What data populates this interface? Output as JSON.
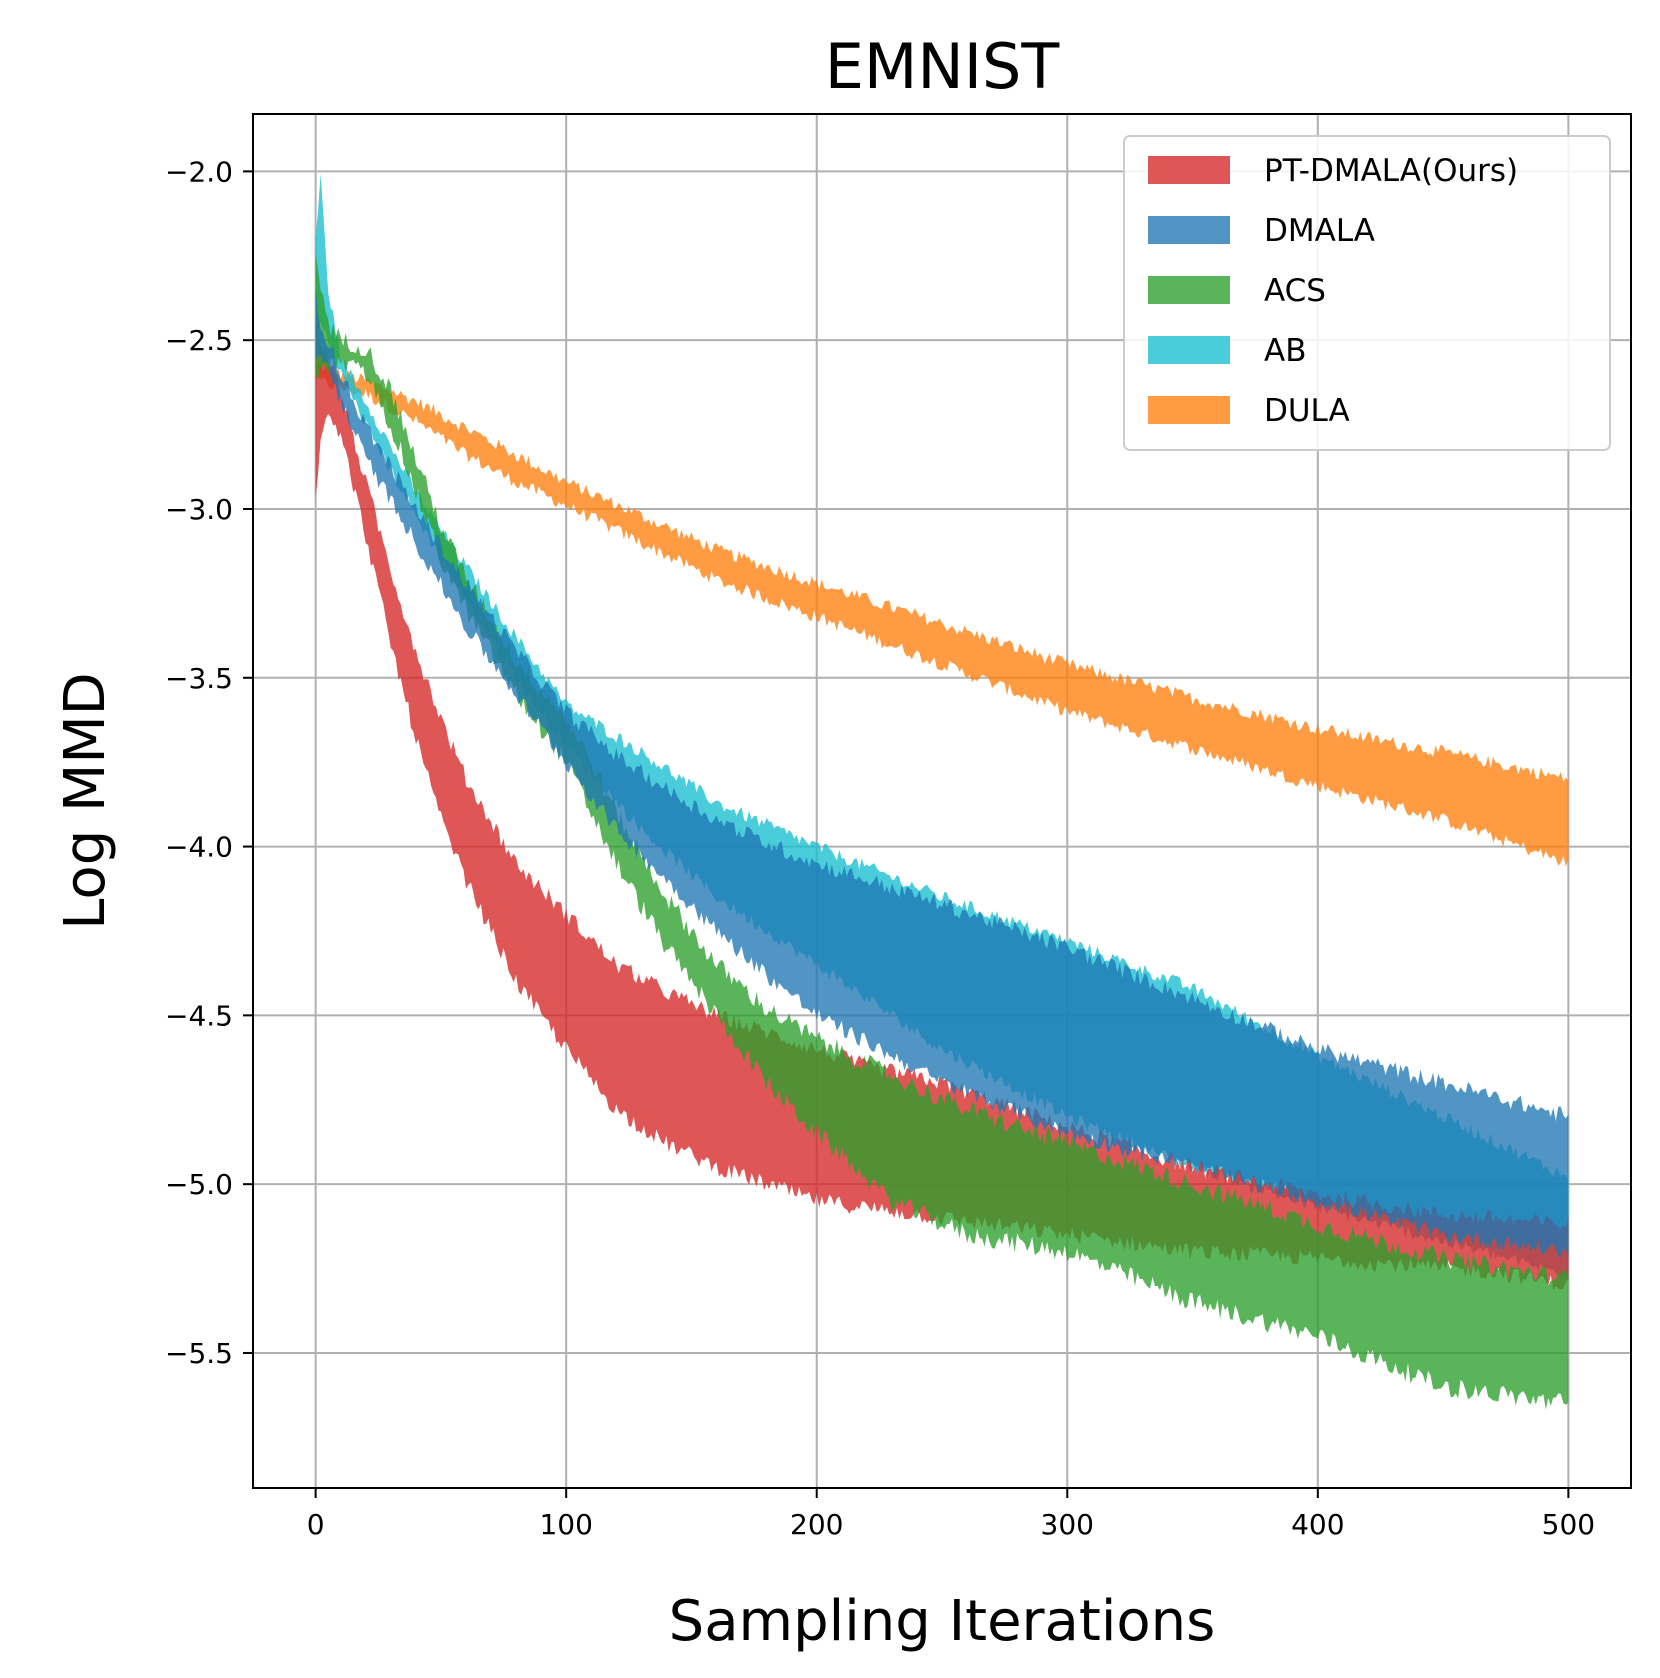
{
  "chart_data": {
    "type": "area",
    "title": "EMNIST",
    "xlabel": "Sampling Iterations",
    "ylabel": "Log MMD",
    "xlim": [
      -25,
      525
    ],
    "ylim": [
      -5.9,
      -1.83
    ],
    "xticks": [
      0,
      100,
      200,
      300,
      400,
      500
    ],
    "yticks": [
      -2.0,
      -2.5,
      -3.0,
      -3.5,
      -4.0,
      -4.5,
      -5.0,
      -5.5
    ],
    "xtick_labels": [
      "0",
      "100",
      "200",
      "300",
      "400",
      "500"
    ],
    "ytick_labels": [
      "−2.0",
      "−2.5",
      "−3.0",
      "−3.5",
      "−4.0",
      "−4.5",
      "−5.0",
      "−5.5"
    ],
    "grid": true,
    "legend_position": "top-right",
    "series": [
      {
        "name": "DULA",
        "color": "#ff7f0e",
        "noise": 0.02,
        "x": [
          0,
          10,
          20,
          40,
          60,
          80,
          100,
          130,
          160,
          200,
          250,
          300,
          350,
          400,
          450,
          500
        ],
        "upper": [
          -2.57,
          -2.6,
          -2.62,
          -2.68,
          -2.76,
          -2.84,
          -2.92,
          -3.02,
          -3.12,
          -3.22,
          -3.34,
          -3.46,
          -3.56,
          -3.65,
          -3.72,
          -3.8
        ],
        "lower": [
          -2.62,
          -2.64,
          -2.66,
          -2.74,
          -2.84,
          -2.92,
          -2.99,
          -3.1,
          -3.21,
          -3.32,
          -3.46,
          -3.6,
          -3.71,
          -3.82,
          -3.92,
          -4.05
        ]
      },
      {
        "name": "AB",
        "color": "#17becf",
        "noise": 0.02,
        "x": [
          0,
          2,
          5,
          10,
          20,
          40,
          60,
          80,
          100,
          130,
          160,
          200,
          250,
          300,
          350,
          400,
          450,
          500
        ],
        "upper": [
          -2.2,
          -2.02,
          -2.35,
          -2.55,
          -2.68,
          -2.95,
          -3.17,
          -3.38,
          -3.58,
          -3.72,
          -3.87,
          -4.0,
          -4.15,
          -4.28,
          -4.42,
          -4.62,
          -4.8,
          -4.98
        ],
        "lower": [
          -2.5,
          -2.45,
          -2.5,
          -2.6,
          -2.75,
          -3.02,
          -3.27,
          -3.5,
          -3.7,
          -3.95,
          -4.15,
          -4.35,
          -4.6,
          -4.8,
          -4.95,
          -5.07,
          -5.17,
          -5.27
        ]
      },
      {
        "name": "PT-DMALA(Ours)",
        "color": "#d62728",
        "noise": 0.025,
        "x": [
          0,
          2,
          5,
          10,
          20,
          30,
          40,
          50,
          60,
          80,
          100,
          120,
          140,
          160,
          180,
          200,
          220,
          250,
          300,
          350,
          400,
          450,
          470,
          500
        ],
        "upper": [
          -2.45,
          -2.5,
          -2.55,
          -2.65,
          -2.92,
          -3.18,
          -3.42,
          -3.62,
          -3.8,
          -4.05,
          -4.2,
          -4.35,
          -4.43,
          -4.5,
          -4.55,
          -4.6,
          -4.65,
          -4.7,
          -4.83,
          -4.95,
          -5.03,
          -5.09,
          -5.1,
          -5.12
        ],
        "lower": [
          -2.95,
          -2.8,
          -2.7,
          -2.78,
          -3.08,
          -3.4,
          -3.68,
          -3.92,
          -4.1,
          -4.4,
          -4.6,
          -4.78,
          -4.88,
          -4.95,
          -5.0,
          -5.05,
          -5.07,
          -5.1,
          -5.15,
          -5.2,
          -5.22,
          -5.25,
          -5.26,
          -5.3
        ]
      },
      {
        "name": "ACS",
        "color": "#2ca02c",
        "noise": 0.03,
        "x": [
          0,
          5,
          10,
          20,
          30,
          40,
          50,
          60,
          80,
          100,
          110,
          120,
          140,
          160,
          180,
          200,
          230,
          260,
          300,
          350,
          400,
          450,
          500
        ],
        "upper": [
          -2.25,
          -2.45,
          -2.5,
          -2.52,
          -2.65,
          -2.85,
          -3.05,
          -3.2,
          -3.45,
          -3.62,
          -3.75,
          -3.9,
          -4.15,
          -4.35,
          -4.48,
          -4.57,
          -4.68,
          -4.78,
          -4.88,
          -5.0,
          -5.12,
          -5.22,
          -5.28
        ],
        "lower": [
          -2.6,
          -2.58,
          -2.57,
          -2.6,
          -2.75,
          -2.95,
          -3.15,
          -3.3,
          -3.55,
          -3.75,
          -3.9,
          -4.05,
          -4.3,
          -4.5,
          -4.7,
          -4.85,
          -5.05,
          -5.15,
          -5.2,
          -5.35,
          -5.45,
          -5.6,
          -5.65
        ]
      },
      {
        "name": "DMALA",
        "color": "#1f77b4",
        "noise": 0.025,
        "x": [
          0,
          2,
          5,
          10,
          20,
          40,
          60,
          80,
          100,
          120,
          140,
          160,
          180,
          200,
          250,
          300,
          350,
          400,
          450,
          500
        ],
        "upper": [
          -2.35,
          -2.45,
          -2.5,
          -2.6,
          -2.75,
          -3.0,
          -3.22,
          -3.42,
          -3.6,
          -3.73,
          -3.83,
          -3.92,
          -3.99,
          -4.05,
          -4.17,
          -4.3,
          -4.45,
          -4.6,
          -4.7,
          -4.8
        ],
        "lower": [
          -2.55,
          -2.55,
          -2.58,
          -2.68,
          -2.85,
          -3.1,
          -3.35,
          -3.55,
          -3.75,
          -3.95,
          -4.1,
          -4.25,
          -4.38,
          -4.5,
          -4.7,
          -4.85,
          -4.95,
          -5.05,
          -5.15,
          -5.2
        ]
      }
    ],
    "legend_order": [
      "PT-DMALA(Ours)",
      "DMALA",
      "ACS",
      "AB",
      "DULA"
    ]
  }
}
